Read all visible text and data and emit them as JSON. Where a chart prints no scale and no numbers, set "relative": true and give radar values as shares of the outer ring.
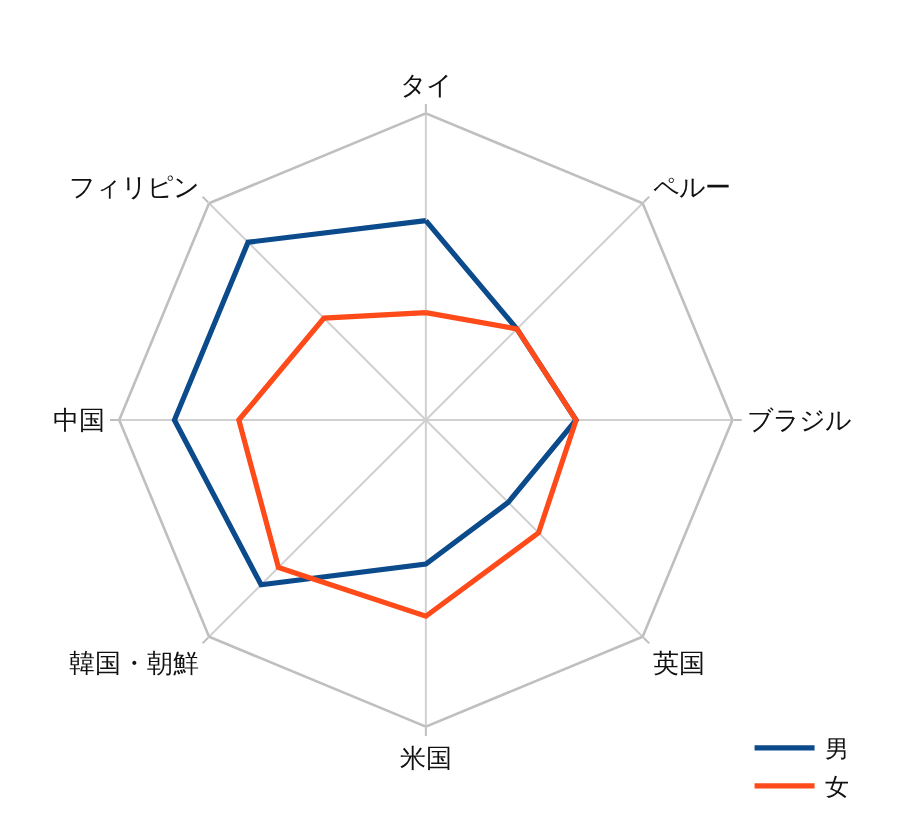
{
  "chart_data": {
    "type": "radar",
    "relative": true,
    "categories": [
      "タイ",
      "ペルー",
      "ブラジル",
      "英国",
      "米国",
      "韓国・朝鮮",
      "中国",
      "フィリピン"
    ],
    "series": [
      {
        "name": "男",
        "color": "#0b4a8b",
        "values": [
          0.65,
          0.42,
          0.49,
          0.38,
          0.47,
          0.76,
          0.82,
          0.82
        ]
      },
      {
        "name": "女",
        "color": "#ff4a1a",
        "values": [
          0.35,
          0.42,
          0.49,
          0.52,
          0.64,
          0.68,
          0.61,
          0.47
        ]
      }
    ],
    "legend": "bottom right",
    "grid": true,
    "marker": "none"
  }
}
